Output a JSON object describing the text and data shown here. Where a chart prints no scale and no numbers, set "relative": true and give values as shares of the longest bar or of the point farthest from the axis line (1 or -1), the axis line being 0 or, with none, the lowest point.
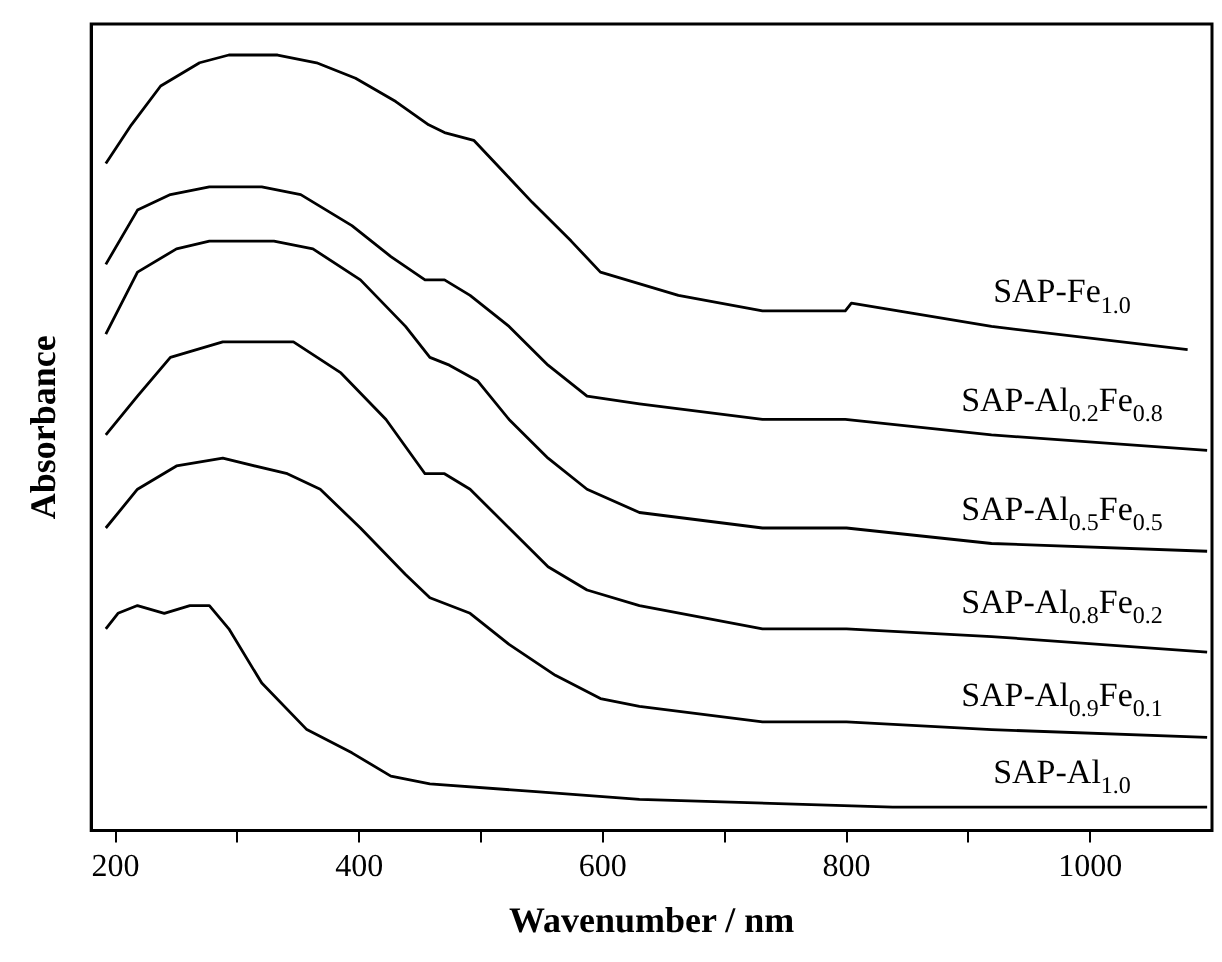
{
  "chart_data": {
    "type": "line",
    "relative": true,
    "xlabel": "Wavenumber / nm",
    "ylabel": "Absorbance",
    "xlim": [
      180,
      1100
    ],
    "xticks": [
      200,
      {
        "value": 300,
        "label": null
      },
      400,
      {
        "value": 500,
        "label": null
      },
      600,
      {
        "value": 700,
        "label": null
      },
      800,
      {
        "value": 900,
        "label": null
      },
      1000
    ],
    "grid": false,
    "legend": false,
    "marker": "none",
    "line_style": "solid",
    "series": [
      {
        "name": "SAP-Fe$_{1.0}$",
        "color": "#000000",
        "x": [
          192,
          213,
          237,
          269,
          293,
          333,
          365,
          397,
          430,
          457,
          470,
          494,
          518,
          542,
          574,
          598,
          662,
          731,
          799,
          804,
          919,
          1080
        ],
        "values": [
          0.86,
          0.91,
          0.96,
          0.99,
          1.0,
          1.0,
          0.99,
          0.97,
          0.94,
          0.91,
          0.9,
          0.89,
          0.85,
          0.81,
          0.76,
          0.72,
          0.69,
          0.67,
          0.67,
          0.68,
          0.65,
          0.62
        ]
      },
      {
        "name": "SAP-Al$_{0.2}$Fe$_{0.8}$",
        "color": "#000000",
        "x": [
          192,
          218,
          245,
          277,
          320,
          352,
          394,
          426,
          454,
          470,
          491,
          523,
          555,
          587,
          630,
          731,
          799,
          919,
          1096
        ],
        "values": [
          0.73,
          0.8,
          0.82,
          0.83,
          0.83,
          0.82,
          0.78,
          0.74,
          0.71,
          0.71,
          0.69,
          0.65,
          0.6,
          0.56,
          0.55,
          0.53,
          0.53,
          0.51,
          0.49
        ]
      },
      {
        "name": "SAP-Al$_{0.5}$Fe$_{0.5}$",
        "color": "#000000",
        "x": [
          192,
          218,
          250,
          277,
          330,
          362,
          401,
          438,
          458,
          474,
          497,
          523,
          555,
          587,
          630,
          731,
          800,
          919,
          1096
        ],
        "values": [
          0.64,
          0.72,
          0.75,
          0.76,
          0.76,
          0.75,
          0.71,
          0.65,
          0.61,
          0.6,
          0.58,
          0.53,
          0.48,
          0.44,
          0.41,
          0.39,
          0.39,
          0.37,
          0.36
        ]
      },
      {
        "name": "SAP-Al$_{0.8}$Fe$_{0.2}$",
        "color": "#000000",
        "x": [
          192,
          218,
          245,
          288,
          346,
          385,
          422,
          454,
          470,
          491,
          523,
          555,
          587,
          630,
          731,
          800,
          919,
          1096
        ],
        "values": [
          0.51,
          0.56,
          0.61,
          0.63,
          0.63,
          0.59,
          0.53,
          0.46,
          0.46,
          0.44,
          0.39,
          0.34,
          0.31,
          0.29,
          0.26,
          0.26,
          0.25,
          0.23
        ]
      },
      {
        "name": "SAP-Al$_{0.9}$Fe$_{0.1}$",
        "color": "#000000",
        "x": [
          192,
          218,
          250,
          288,
          341,
          368,
          401,
          438,
          458,
          491,
          523,
          561,
          598,
          630,
          731,
          800,
          919,
          1096
        ],
        "values": [
          0.39,
          0.44,
          0.47,
          0.48,
          0.46,
          0.44,
          0.39,
          0.33,
          0.3,
          0.28,
          0.24,
          0.2,
          0.17,
          0.16,
          0.14,
          0.14,
          0.13,
          0.12
        ]
      },
      {
        "name": "SAP-Al$_{1.0}$",
        "color": "#000000",
        "x": [
          192,
          202,
          218,
          240,
          261,
          277,
          293,
          320,
          357,
          394,
          426,
          458,
          545,
          630,
          838,
          1096
        ],
        "values": [
          0.26,
          0.28,
          0.29,
          0.28,
          0.29,
          0.29,
          0.26,
          0.19,
          0.13,
          0.1,
          0.07,
          0.06,
          0.05,
          0.04,
          0.03,
          0.03
        ]
      }
    ]
  }
}
